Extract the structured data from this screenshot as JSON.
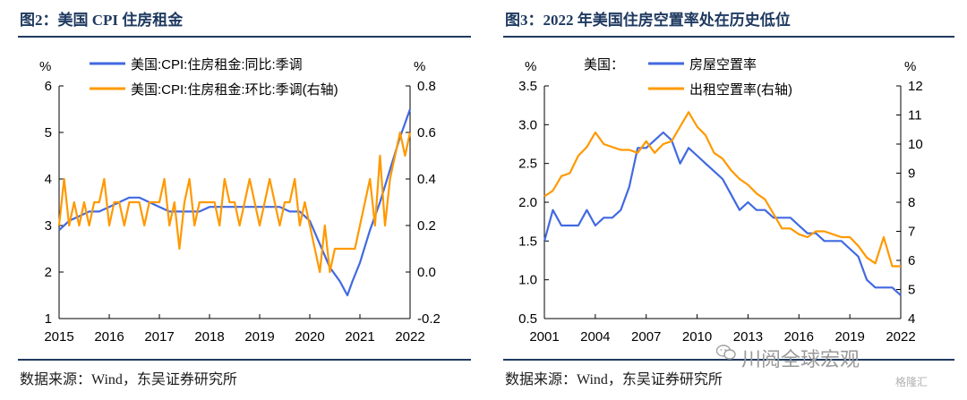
{
  "left": {
    "title": "图2：美国 CPI 住房租金",
    "source": "数据来源：Wind，东吴证券研究所",
    "chart_data": {
      "type": "line",
      "y_unit_left": "%",
      "y_unit_right": "%",
      "ylim_left": [
        1,
        6
      ],
      "yticks_left": [
        "1",
        "2",
        "3",
        "4",
        "5",
        "6"
      ],
      "ylim_right": [
        -0.2,
        0.8
      ],
      "yticks_right": [
        "-0.2",
        "0.0",
        "0.2",
        "0.4",
        "0.6",
        "0.8"
      ],
      "xlim": [
        2015,
        2022
      ],
      "xticks": [
        "2015",
        "2016",
        "2017",
        "2018",
        "2019",
        "2020",
        "2021",
        "2022"
      ],
      "series": [
        {
          "name": "美国:CPI:住房租金:同比:季调",
          "axis": "left",
          "color": "#4169e1",
          "x": [
            2015,
            2015.2,
            2015.4,
            2015.6,
            2015.8,
            2016,
            2016.2,
            2016.4,
            2016.6,
            2016.8,
            2017,
            2017.2,
            2017.4,
            2017.6,
            2017.8,
            2018,
            2018.2,
            2018.4,
            2018.6,
            2018.8,
            2019,
            2019.2,
            2019.4,
            2019.6,
            2019.8,
            2020,
            2020.2,
            2020.4,
            2020.6,
            2020.75,
            2020.85,
            2021,
            2021.2,
            2021.4,
            2021.6,
            2021.8,
            2022
          ],
          "values": [
            2.9,
            3.1,
            3.2,
            3.3,
            3.3,
            3.4,
            3.5,
            3.6,
            3.6,
            3.5,
            3.4,
            3.3,
            3.3,
            3.3,
            3.3,
            3.4,
            3.4,
            3.4,
            3.4,
            3.4,
            3.4,
            3.4,
            3.4,
            3.3,
            3.3,
            3.1,
            2.6,
            2.1,
            1.8,
            1.5,
            1.8,
            2.2,
            2.9,
            3.5,
            4.2,
            4.9,
            5.5
          ]
        },
        {
          "name": "美国:CPI:住房租金:环比:季调(右轴)",
          "axis": "right",
          "color": "#ff9900",
          "x": [
            2015,
            2015.1,
            2015.2,
            2015.3,
            2015.4,
            2015.5,
            2015.6,
            2015.7,
            2015.8,
            2015.9,
            2016,
            2016.1,
            2016.2,
            2016.3,
            2016.4,
            2016.5,
            2016.6,
            2016.7,
            2016.8,
            2016.9,
            2017,
            2017.1,
            2017.2,
            2017.3,
            2017.4,
            2017.5,
            2017.6,
            2017.7,
            2017.8,
            2017.9,
            2018,
            2018.1,
            2018.2,
            2018.3,
            2018.4,
            2018.5,
            2018.6,
            2018.7,
            2018.8,
            2018.9,
            2019,
            2019.1,
            2019.2,
            2019.3,
            2019.4,
            2019.5,
            2019.6,
            2019.7,
            2019.8,
            2019.9,
            2020,
            2020.1,
            2020.2,
            2020.3,
            2020.4,
            2020.5,
            2020.6,
            2020.7,
            2020.8,
            2020.9,
            2021,
            2021.1,
            2021.2,
            2021.3,
            2021.4,
            2021.5,
            2021.6,
            2021.7,
            2021.8,
            2021.9,
            2022
          ],
          "values": [
            0.2,
            0.4,
            0.2,
            0.3,
            0.2,
            0.3,
            0.2,
            0.3,
            0.3,
            0.4,
            0.2,
            0.3,
            0.3,
            0.2,
            0.3,
            0.3,
            0.3,
            0.2,
            0.3,
            0.3,
            0.3,
            0.4,
            0.2,
            0.3,
            0.1,
            0.3,
            0.4,
            0.2,
            0.3,
            0.3,
            0.3,
            0.3,
            0.2,
            0.4,
            0.3,
            0.3,
            0.2,
            0.3,
            0.4,
            0.3,
            0.2,
            0.3,
            0.4,
            0.3,
            0.2,
            0.3,
            0.3,
            0.4,
            0.2,
            0.3,
            0.2,
            0.1,
            0.0,
            0.2,
            0.0,
            0.1,
            0.1,
            0.1,
            0.1,
            0.1,
            0.2,
            0.3,
            0.4,
            0.2,
            0.5,
            0.2,
            0.4,
            0.5,
            0.6,
            0.5,
            0.6
          ]
        }
      ]
    }
  },
  "right": {
    "title": "图3：2022 年美国住房空置率处在历史低位",
    "source": "数据来源：Wind，东吴证券研究所",
    "legend_prefix": "美国：",
    "chart_data": {
      "type": "line",
      "y_unit_left": "%",
      "y_unit_right": "%",
      "ylim_left": [
        0.5,
        3.5
      ],
      "yticks_left": [
        "0.5",
        "1.0",
        "1.5",
        "2.0",
        "2.5",
        "3.0",
        "3.5"
      ],
      "ylim_right": [
        4,
        12
      ],
      "yticks_right": [
        "4",
        "5",
        "6",
        "7",
        "8",
        "9",
        "10",
        "11",
        "12"
      ],
      "xlim": [
        2001,
        2022
      ],
      "xticks": [
        "2001",
        "2004",
        "2007",
        "2010",
        "2013",
        "2016",
        "2019",
        "2022"
      ],
      "series": [
        {
          "name": "房屋空置率",
          "axis": "left",
          "color": "#4169e1",
          "x": [
            2001,
            2001.5,
            2002,
            2002.5,
            2003,
            2003.5,
            2004,
            2004.5,
            2005,
            2005.5,
            2006,
            2006.5,
            2007,
            2007.5,
            2008,
            2008.5,
            2009,
            2009.5,
            2010,
            2010.5,
            2011,
            2011.5,
            2012,
            2012.5,
            2013,
            2013.5,
            2014,
            2014.5,
            2015,
            2015.5,
            2016,
            2016.5,
            2017,
            2017.5,
            2018,
            2018.5,
            2019,
            2019.5,
            2020,
            2020.5,
            2021,
            2021.5,
            2022
          ],
          "values": [
            1.5,
            1.9,
            1.7,
            1.7,
            1.7,
            1.9,
            1.7,
            1.8,
            1.8,
            1.9,
            2.2,
            2.7,
            2.7,
            2.8,
            2.9,
            2.8,
            2.5,
            2.7,
            2.6,
            2.5,
            2.4,
            2.3,
            2.1,
            1.9,
            2.0,
            1.9,
            1.9,
            1.8,
            1.8,
            1.8,
            1.7,
            1.6,
            1.6,
            1.5,
            1.5,
            1.5,
            1.4,
            1.3,
            1.0,
            0.9,
            0.9,
            0.9,
            0.8
          ]
        },
        {
          "name": "出租空置率(右轴)",
          "axis": "right",
          "color": "#ff9900",
          "x": [
            2001,
            2001.5,
            2002,
            2002.5,
            2003,
            2003.5,
            2004,
            2004.5,
            2005,
            2005.5,
            2006,
            2006.5,
            2007,
            2007.5,
            2008,
            2008.5,
            2009,
            2009.5,
            2010,
            2010.5,
            2011,
            2011.5,
            2012,
            2012.5,
            2013,
            2013.5,
            2014,
            2014.5,
            2015,
            2015.5,
            2016,
            2016.5,
            2017,
            2017.5,
            2018,
            2018.5,
            2019,
            2019.5,
            2020,
            2020.5,
            2021,
            2021.5,
            2022
          ],
          "values": [
            8.2,
            8.4,
            8.9,
            9.0,
            9.6,
            9.9,
            10.4,
            10.0,
            9.9,
            9.8,
            9.8,
            9.7,
            10.1,
            9.7,
            10.0,
            10.1,
            10.6,
            11.1,
            10.6,
            10.3,
            9.7,
            9.5,
            9.1,
            8.8,
            8.6,
            8.3,
            8.1,
            7.6,
            7.1,
            7.1,
            6.9,
            6.8,
            7.0,
            7.0,
            6.9,
            6.8,
            6.8,
            6.5,
            6.1,
            5.9,
            6.8,
            5.8,
            5.8
          ]
        }
      ]
    }
  },
  "watermark": "川阅全球宏观",
  "brand": "格隆汇"
}
